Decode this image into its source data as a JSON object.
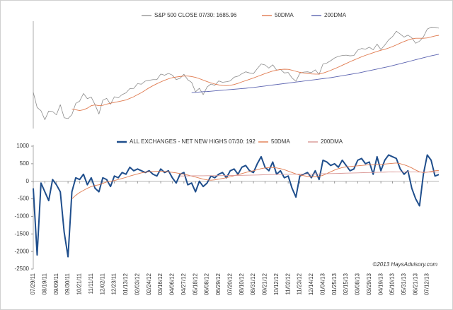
{
  "chart_data": [
    {
      "type": "line",
      "ylim": [
        1070,
        1720
      ],
      "series": [
        {
          "name": "S&P 500 CLOSE 07/30: 1685.96",
          "color": "#8c8c8c",
          "values": [
            1292,
            1199,
            1179,
            1124,
            1177,
            1174,
            1154,
            1216,
            1136,
            1131,
            1155,
            1224,
            1238,
            1285,
            1253,
            1263,
            1216,
            1159,
            1244,
            1255,
            1219,
            1265,
            1258,
            1278,
            1289,
            1315,
            1316,
            1345,
            1342,
            1361,
            1366,
            1370,
            1370,
            1404,
            1397,
            1408,
            1398,
            1370,
            1378,
            1403,
            1369,
            1353,
            1295,
            1317,
            1278,
            1325,
            1343,
            1335,
            1362,
            1354,
            1357,
            1362,
            1385,
            1391,
            1406,
            1418,
            1411,
            1407,
            1438,
            1466,
            1460,
            1441,
            1461,
            1428,
            1433,
            1411,
            1414,
            1380,
            1360,
            1409,
            1416,
            1418,
            1413,
            1430,
            1402,
            1466,
            1472,
            1486,
            1503,
            1513,
            1518,
            1520,
            1516,
            1518,
            1551,
            1561,
            1557,
            1569,
            1553,
            1588,
            1555,
            1582,
            1614,
            1634,
            1667,
            1650,
            1631,
            1643,
            1627,
            1593,
            1606,
            1632,
            1680,
            1692,
            1691,
            1686
          ]
        },
        {
          "name": "50DMA",
          "color": "#e07b50",
          "values": [
            null,
            null,
            null,
            null,
            null,
            null,
            null,
            null,
            null,
            null,
            1190,
            1185,
            1180,
            1185,
            1195,
            1210,
            1215,
            1210,
            1212,
            1220,
            1225,
            1230,
            1235,
            1240,
            1245,
            1255,
            1265,
            1278,
            1290,
            1305,
            1320,
            1333,
            1345,
            1356,
            1366,
            1375,
            1382,
            1386,
            1389,
            1392,
            1392,
            1389,
            1384,
            1376,
            1367,
            1358,
            1350,
            1343,
            1338,
            1334,
            1333,
            1335,
            1340,
            1347,
            1356,
            1364,
            1372,
            1380,
            1389,
            1398,
            1407,
            1415,
            1423,
            1428,
            1432,
            1434,
            1433,
            1428,
            1421,
            1415,
            1411,
            1408,
            1405,
            1404,
            1404,
            1410,
            1418,
            1427,
            1437,
            1447,
            1458,
            1469,
            1480,
            1490,
            1500,
            1510,
            1519,
            1527,
            1535,
            1543,
            1550,
            1556,
            1564,
            1573,
            1583,
            1594,
            1604,
            1613,
            1620,
            1624,
            1624,
            1624,
            1626,
            1632,
            1638,
            1642
          ]
        },
        {
          "name": "200DMA",
          "color": "#5b63b0",
          "values": [
            null,
            null,
            null,
            null,
            null,
            null,
            null,
            null,
            null,
            null,
            null,
            null,
            null,
            null,
            null,
            null,
            null,
            null,
            null,
            null,
            null,
            null,
            null,
            null,
            null,
            null,
            null,
            null,
            null,
            null,
            null,
            null,
            null,
            null,
            null,
            null,
            null,
            null,
            null,
            null,
            null,
            1290,
            1292,
            1294,
            1296,
            1297,
            1299,
            1301,
            1303,
            1305,
            1307,
            1309,
            1311,
            1313,
            1315,
            1317,
            1320,
            1322,
            1325,
            1328,
            1331,
            1334,
            1337,
            1340,
            1343,
            1346,
            1349,
            1352,
            1355,
            1358,
            1361,
            1364,
            1367,
            1370,
            1373,
            1376,
            1379,
            1382,
            1386,
            1390,
            1394,
            1398,
            1402,
            1406,
            1410,
            1415,
            1420,
            1425,
            1430,
            1435,
            1440,
            1445,
            1450,
            1456,
            1462,
            1468,
            1474,
            1480,
            1486,
            1492,
            1498,
            1504,
            1510,
            1516,
            1521,
            1526
          ]
        }
      ]
    },
    {
      "type": "line",
      "categories": [
        "07/29/11",
        null,
        null,
        "08/19/11",
        null,
        null,
        "09/09/11",
        null,
        null,
        "09/30/11",
        null,
        null,
        "10/21/11",
        null,
        null,
        "11/11/11",
        null,
        null,
        "12/02/11",
        null,
        null,
        "12/23/11",
        null,
        null,
        "01/13/12",
        null,
        null,
        "02/03/12",
        null,
        null,
        "02/24/12",
        null,
        null,
        "03/16/12",
        null,
        null,
        "04/06/12",
        null,
        null,
        "04/27/12",
        null,
        null,
        "05/18/12",
        null,
        null,
        "06/08/12",
        null,
        null,
        "06/29/12",
        null,
        null,
        "07/20/12",
        null,
        null,
        "08/10/12",
        null,
        null,
        "08/31/12",
        null,
        null,
        "09/21/12",
        null,
        null,
        "10/12/12",
        null,
        null,
        "11/02/12",
        null,
        null,
        "11/23/12",
        null,
        null,
        "12/14/12",
        null,
        null,
        "01/04/13",
        null,
        null,
        "01/25/13",
        null,
        null,
        "02/15/13",
        null,
        null,
        "03/08/13",
        null,
        null,
        "03/29/13",
        null,
        null,
        "04/19/13",
        null,
        null,
        "05/10/13",
        null,
        null,
        "05/31/13",
        null,
        null,
        "06/21/13",
        null,
        null,
        "07/12/13",
        null,
        null,
        null
      ],
      "ylim": [
        -2500,
        1000
      ],
      "yticks": [
        -2500,
        -2000,
        -1500,
        -1000,
        -500,
        0,
        500,
        1000
      ],
      "annotation": "©2013 HaysAdvisory.com",
      "series": [
        {
          "name": "ALL EXCHANGES - NET NEW HIGHS 07/30: 192",
          "color": "#1f4e8c",
          "values": [
            -200,
            -2100,
            -50,
            -300,
            -550,
            50,
            -100,
            -300,
            -1450,
            -2150,
            -300,
            100,
            50,
            200,
            -100,
            100,
            -200,
            -300,
            100,
            50,
            -150,
            150,
            100,
            250,
            200,
            400,
            300,
            350,
            300,
            250,
            300,
            200,
            150,
            350,
            250,
            300,
            100,
            -50,
            200,
            250,
            -100,
            -50,
            -300,
            0,
            -150,
            -50,
            150,
            100,
            200,
            250,
            100,
            300,
            350,
            200,
            400,
            450,
            300,
            250,
            500,
            700,
            400,
            300,
            550,
            200,
            300,
            100,
            150,
            -200,
            -450,
            150,
            200,
            250,
            100,
            300,
            50,
            600,
            550,
            450,
            500,
            400,
            600,
            450,
            300,
            350,
            600,
            650,
            500,
            550,
            200,
            700,
            300,
            600,
            750,
            700,
            650,
            350,
            200,
            300,
            -200,
            -500,
            -700,
            200,
            750,
            600,
            150,
            192
          ]
        },
        {
          "name": "50DMA",
          "color": "#e07b50",
          "values": [
            null,
            null,
            null,
            null,
            null,
            null,
            null,
            null,
            null,
            null,
            -500,
            -400,
            -320,
            -260,
            -200,
            -150,
            -120,
            -100,
            -60,
            -20,
            0,
            20,
            50,
            80,
            110,
            150,
            180,
            210,
            240,
            260,
            270,
            280,
            285,
            285,
            280,
            270,
            255,
            240,
            220,
            200,
            180,
            150,
            120,
            90,
            60,
            40,
            30,
            40,
            60,
            80,
            100,
            130,
            160,
            190,
            220,
            250,
            280,
            300,
            330,
            360,
            380,
            390,
            390,
            380,
            360,
            330,
            290,
            250,
            210,
            180,
            160,
            140,
            130,
            130,
            140,
            170,
            220,
            270,
            320,
            360,
            390,
            410,
            420,
            430,
            440,
            450,
            460,
            470,
            470,
            480,
            480,
            490,
            500,
            510,
            520,
            500,
            470,
            430,
            380,
            320,
            270,
            250,
            260,
            280,
            300,
            310
          ]
        },
        {
          "name": "200DMA",
          "color": "#d99694",
          "values": [
            null,
            null,
            null,
            null,
            null,
            null,
            null,
            null,
            null,
            null,
            null,
            null,
            null,
            null,
            null,
            null,
            null,
            null,
            null,
            null,
            null,
            null,
            null,
            null,
            null,
            null,
            null,
            null,
            null,
            null,
            null,
            null,
            null,
            null,
            null,
            null,
            null,
            null,
            150,
            152,
            154,
            155,
            156,
            157,
            157,
            158,
            158,
            159,
            160,
            161,
            162,
            163,
            165,
            167,
            169,
            171,
            174,
            177,
            180,
            183,
            186,
            189,
            192,
            195,
            197,
            199,
            200,
            201,
            202,
            203,
            204,
            205,
            206,
            208,
            210,
            213,
            216,
            219,
            222,
            225,
            228,
            231,
            234,
            237,
            240,
            243,
            246,
            249,
            252,
            255,
            258,
            261,
            264,
            266,
            268,
            268,
            267,
            266,
            265,
            264,
            263,
            262,
            262,
            262,
            262,
            262
          ]
        }
      ]
    }
  ]
}
